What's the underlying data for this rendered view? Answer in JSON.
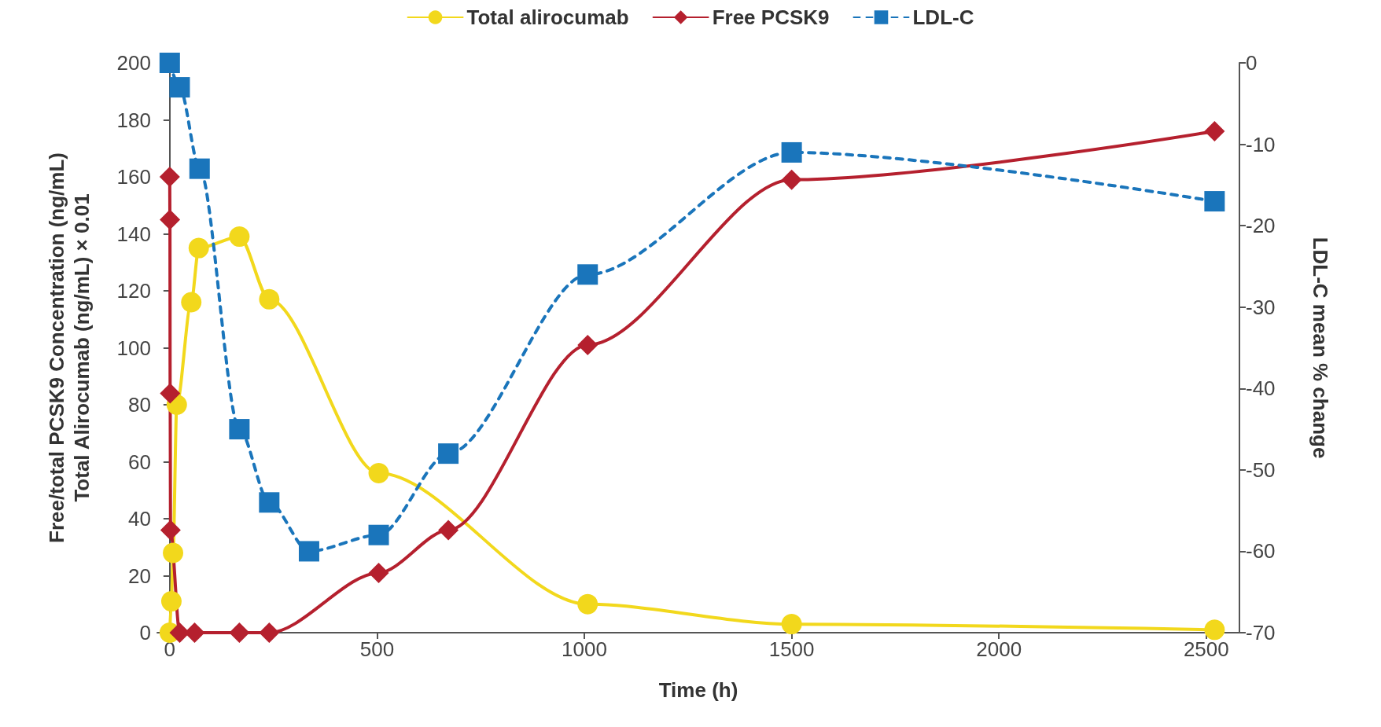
{
  "chart_data": {
    "type": "line",
    "xlabel": "Time (h)",
    "ylabel": "Free/total PCSK9 Concentration (ng/mL)\nTotal Alirocumab (ng/mL) × 0.01",
    "y2label": "LDL-C mean % change",
    "xlim": [
      -30,
      2580
    ],
    "xticks": [
      0,
      500,
      1000,
      1500,
      2000,
      2500
    ],
    "ylim": [
      0,
      200
    ],
    "yticks": [
      0,
      20,
      40,
      60,
      80,
      100,
      120,
      140,
      160,
      180,
      200
    ],
    "y2lim": [
      -70,
      0
    ],
    "y2ticks": [
      -70,
      -60,
      -50,
      -40,
      -30,
      -20,
      -10,
      0
    ],
    "legend": "top",
    "grid": false,
    "series": [
      {
        "name": "Total alirocumab",
        "color": "#f2d81c",
        "marker": "circle",
        "line_style": "solid",
        "x": [
          0,
          4,
          8,
          17,
          52,
          70,
          168,
          240,
          504,
          1008,
          1500,
          2520
        ],
        "values": [
          0,
          11,
          28,
          80,
          116,
          135,
          139,
          117,
          56,
          10,
          3,
          1
        ]
      },
      {
        "name": "Free PCSK9",
        "color": "#b5202e",
        "marker": "diamond",
        "line_style": "solid",
        "x": [
          0,
          0.5,
          1,
          2,
          24,
          60,
          168,
          240,
          504,
          672,
          1008,
          1500,
          2520
        ],
        "values": [
          160,
          145,
          84,
          36,
          0,
          0,
          0,
          0,
          21,
          36,
          101,
          159,
          176
        ]
      },
      {
        "name": "LDL-C",
        "color": "#1a75bb",
        "marker": "square",
        "line_style": "dashed",
        "axis": "y2",
        "x": [
          0,
          24,
          72,
          168,
          240,
          336,
          504,
          672,
          1008,
          1500,
          2520
        ],
        "values": [
          0,
          -3,
          -13,
          -45,
          -54,
          -60,
          -58,
          -48,
          -26,
          -11,
          -17
        ]
      }
    ]
  }
}
